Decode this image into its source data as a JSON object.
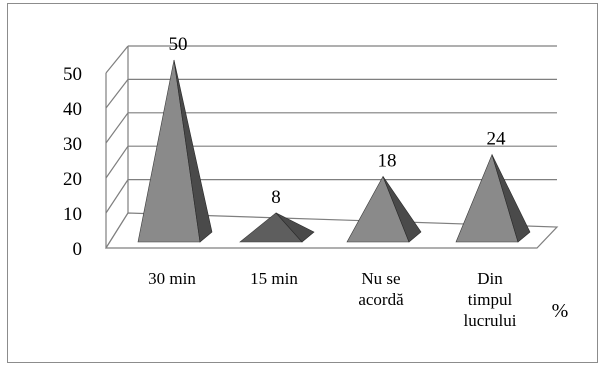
{
  "chart_data": {
    "type": "bar",
    "style": "3d-pyramid",
    "categories": [
      "30 min",
      "15 min",
      "Nu se acordă",
      "Din timpul lucrului"
    ],
    "category_label_lines": [
      [
        "30 min"
      ],
      [
        "15 min"
      ],
      [
        "Nu se",
        "acordă"
      ],
      [
        "Din",
        "timpul",
        "lucrului"
      ]
    ],
    "values": [
      50,
      8,
      18,
      24
    ],
    "data_labels": [
      "50",
      "8",
      "18",
      "24"
    ],
    "ylim": [
      0,
      50
    ],
    "yticks": [
      0,
      10,
      20,
      30,
      40,
      50
    ],
    "unit_label": "%",
    "grid": true,
    "legend": "none",
    "colors": {
      "pyramid_front": "#8a8a8a",
      "pyramid_side": "#4a4a4a",
      "pyramid_small_front": "#5e5e5e",
      "floor": "#ffffff",
      "gridline": "#7f7f7f"
    }
  }
}
